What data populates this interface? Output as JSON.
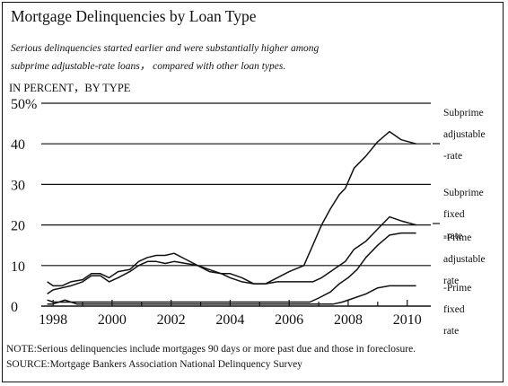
{
  "chart_data": {
    "type": "line",
    "title": "Mortgage Delinquencies by Loan Type",
    "subtitle_lines": [
      "Serious delinquencies started earlier and were substantially higher among",
      "subprime adjustable-rate loans， compared with other loan types."
    ],
    "ylabel": "IN PERCENT，BY TYPE",
    "ylim": [
      0,
      50
    ],
    "xlim": [
      1997.6,
      2010.8
    ],
    "y_ticks": [
      {
        "value": 50,
        "label": "50%"
      },
      {
        "value": 40,
        "label": "40"
      },
      {
        "value": 30,
        "label": "30"
      },
      {
        "value": 20,
        "label": "20"
      },
      {
        "value": 10,
        "label": "10"
      },
      {
        "value": 0,
        "label": "0"
      }
    ],
    "x_ticks": [
      {
        "value": 1998,
        "label": "1998"
      },
      {
        "value": 2000,
        "label": "2000"
      },
      {
        "value": 2002,
        "label": "2002"
      },
      {
        "value": 2004,
        "label": "2004"
      },
      {
        "value": 2006,
        "label": "2006"
      },
      {
        "value": 2008,
        "label": "2008"
      },
      {
        "value": 2010,
        "label": "2010"
      }
    ],
    "grid": "horizontal",
    "series": [
      {
        "name": "Subprime adjustable -rate",
        "label_lines": [
          "Subprime",
          "adjustable",
          "-rate"
        ],
        "points": [
          [
            1997.8,
            6
          ],
          [
            1998.0,
            5
          ],
          [
            1998.3,
            5
          ],
          [
            1998.6,
            6
          ],
          [
            1999.0,
            6.5
          ],
          [
            1999.3,
            8
          ],
          [
            1999.6,
            8
          ],
          [
            1999.9,
            7
          ],
          [
            2000.2,
            8.5
          ],
          [
            2000.6,
            9
          ],
          [
            2000.9,
            11
          ],
          [
            2001.2,
            12
          ],
          [
            2001.5,
            12.5
          ],
          [
            2001.8,
            12.5
          ],
          [
            2002.1,
            13
          ],
          [
            2002.5,
            11.5
          ],
          [
            2002.9,
            10
          ],
          [
            2003.3,
            8.5
          ],
          [
            2003.7,
            8
          ],
          [
            2004.0,
            8
          ],
          [
            2004.4,
            7
          ],
          [
            2004.8,
            5.5
          ],
          [
            2005.2,
            5.5
          ],
          [
            2005.6,
            7
          ],
          [
            2006.0,
            8.5
          ],
          [
            2006.5,
            10
          ],
          [
            2006.8,
            15
          ],
          [
            2007.1,
            20
          ],
          [
            2007.4,
            24
          ],
          [
            2007.7,
            27.5
          ],
          [
            2007.9,
            29
          ],
          [
            2008.2,
            34
          ],
          [
            2008.6,
            37
          ],
          [
            2009.0,
            40.5
          ],
          [
            2009.4,
            43
          ],
          [
            2009.8,
            41
          ],
          [
            2010.3,
            40
          ]
        ]
      },
      {
        "name": "Subprime fixed -rate",
        "label_lines": [
          "Subprime",
          "fixed",
          "-rate"
        ],
        "points": [
          [
            1997.8,
            3
          ],
          [
            1998.0,
            4
          ],
          [
            1998.3,
            4.5
          ],
          [
            1998.6,
            5
          ],
          [
            1999.0,
            6
          ],
          [
            1999.3,
            7.5
          ],
          [
            1999.6,
            7.5
          ],
          [
            1999.9,
            6
          ],
          [
            2000.2,
            7
          ],
          [
            2000.6,
            8.5
          ],
          [
            2000.9,
            10
          ],
          [
            2001.2,
            11
          ],
          [
            2001.5,
            11
          ],
          [
            2001.8,
            10.5
          ],
          [
            2002.1,
            11
          ],
          [
            2002.5,
            10.5
          ],
          [
            2002.9,
            10
          ],
          [
            2003.3,
            9
          ],
          [
            2003.7,
            8
          ],
          [
            2004.0,
            7
          ],
          [
            2004.4,
            6
          ],
          [
            2004.8,
            5.5
          ],
          [
            2005.2,
            5.5
          ],
          [
            2005.6,
            6
          ],
          [
            2006.0,
            6
          ],
          [
            2006.5,
            6
          ],
          [
            2006.8,
            6
          ],
          [
            2007.1,
            7
          ],
          [
            2007.4,
            8.5
          ],
          [
            2007.7,
            10
          ],
          [
            2007.9,
            11
          ],
          [
            2008.2,
            14
          ],
          [
            2008.6,
            16
          ],
          [
            2009.0,
            19
          ],
          [
            2009.4,
            22
          ],
          [
            2009.8,
            21
          ],
          [
            2010.3,
            20
          ]
        ]
      },
      {
        "name": "Prime adjustable rate",
        "label_lines": [
          "-Prime",
          "adjustable",
          "rate"
        ],
        "points": [
          [
            1997.8,
            1.5
          ],
          [
            1998.0,
            1
          ],
          [
            1998.5,
            1
          ],
          [
            1999.0,
            1
          ],
          [
            2000.0,
            1
          ],
          [
            2001.0,
            1
          ],
          [
            2002.0,
            1
          ],
          [
            2003.0,
            1
          ],
          [
            2004.0,
            1
          ],
          [
            2005.0,
            1
          ],
          [
            2006.0,
            1
          ],
          [
            2006.7,
            1
          ],
          [
            2007.0,
            2
          ],
          [
            2007.4,
            3.5
          ],
          [
            2007.7,
            5.5
          ],
          [
            2008.0,
            7
          ],
          [
            2008.3,
            9
          ],
          [
            2008.6,
            12
          ],
          [
            2009.0,
            15
          ],
          [
            2009.4,
            17.5
          ],
          [
            2009.8,
            18
          ],
          [
            2010.3,
            18
          ]
        ]
      },
      {
        "name": "Prime fixed rate",
        "label_lines": [
          "-Prime",
          "fixed",
          "rate"
        ],
        "points": [
          [
            1997.8,
            0.5
          ],
          [
            1998.0,
            0.5
          ],
          [
            1998.4,
            1.5
          ],
          [
            1998.8,
            0.5
          ],
          [
            1999.5,
            0.5
          ],
          [
            2000.5,
            0.5
          ],
          [
            2001.5,
            0.5
          ],
          [
            2002.5,
            0.5
          ],
          [
            2003.5,
            0.5
          ],
          [
            2004.5,
            0.5
          ],
          [
            2005.5,
            0.5
          ],
          [
            2006.5,
            0.5
          ],
          [
            2007.5,
            0.5
          ],
          [
            2007.8,
            1
          ],
          [
            2008.2,
            2
          ],
          [
            2008.6,
            3
          ],
          [
            2009.0,
            4.5
          ],
          [
            2009.4,
            5
          ],
          [
            2009.8,
            5
          ],
          [
            2010.3,
            5
          ]
        ]
      }
    ],
    "note": "NOTE:Serious delinquencies include mortgages 90 days or more past due and those in foreclosure.",
    "source": "SOURCE:Mortgage Bankers Association National Delinquency Survey",
    "colors": {
      "line": "#111111",
      "grid": "#111111",
      "background": "#ffffff"
    }
  }
}
